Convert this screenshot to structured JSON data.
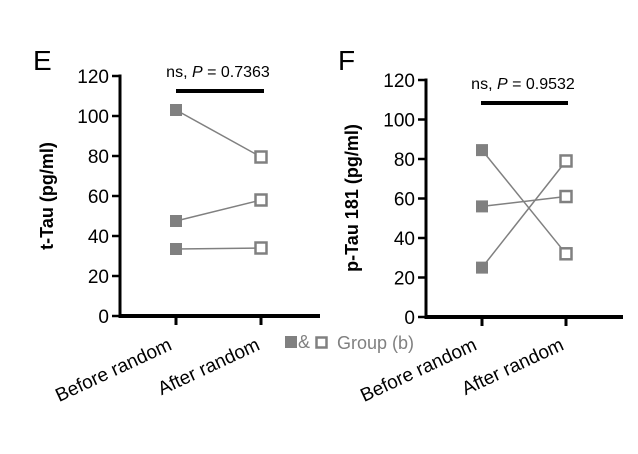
{
  "chart_data": [
    {
      "type": "line",
      "panel": "E",
      "ylabel": "t-Tau (pg/ml)",
      "categories": [
        "Before random",
        "After random"
      ],
      "ylim": [
        0,
        120
      ],
      "yticks": [
        0,
        20,
        40,
        60,
        80,
        100,
        120
      ],
      "significance": {
        "ns": "ns, ",
        "p_symbol": "P",
        "p_text": " = 0.7363"
      },
      "pairs": [
        {
          "before": 103,
          "after": 79.5
        },
        {
          "before": 47.5,
          "after": 58
        },
        {
          "before": 33.5,
          "after": 34
        }
      ]
    },
    {
      "type": "line",
      "panel": "F",
      "ylabel": "p-Tau 181 (pg/ml)",
      "categories": [
        "Before random",
        "After random"
      ],
      "ylim": [
        0,
        120
      ],
      "yticks": [
        0,
        20,
        40,
        60,
        80,
        100,
        120
      ],
      "significance": {
        "ns": "ns, ",
        "p_symbol": "P",
        "p_text": " = 0.9532"
      },
      "pairs": [
        {
          "before": 84.5,
          "after": 32
        },
        {
          "before": 56,
          "after": 61
        },
        {
          "before": 25,
          "after": 79
        }
      ]
    }
  ],
  "legend": {
    "amp": "&",
    "label": "Group (b)"
  },
  "colors": {
    "marker": "#808080",
    "line": "#808080",
    "axis": "#000000"
  }
}
